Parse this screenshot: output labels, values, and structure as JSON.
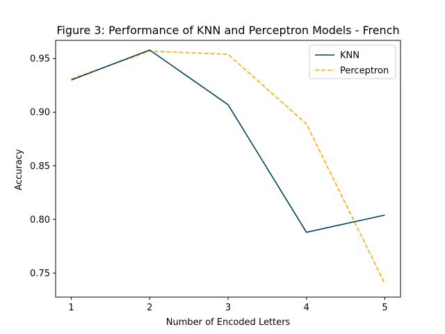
{
  "chart_data": {
    "type": "line",
    "title": "Figure 3: Performance of KNN and Perceptron Models - French",
    "xlabel": "Number of Encoded Letters",
    "ylabel": "Accuracy",
    "x": [
      1,
      2,
      3,
      4,
      5
    ],
    "x_ticks": [
      "1",
      "2",
      "3",
      "4",
      "5"
    ],
    "y_ticks": [
      "0.75",
      "0.80",
      "0.85",
      "0.90",
      "0.95"
    ],
    "xlim": [
      0.8,
      5.2
    ],
    "ylim": [
      0.7275,
      0.967
    ],
    "grid": false,
    "legend_position": "top-right",
    "series": [
      {
        "name": "KNN",
        "values": [
          0.93,
          0.958,
          0.907,
          0.788,
          0.804
        ],
        "color": "#003f5c",
        "line_style": "solid"
      },
      {
        "name": "Perceptron",
        "values": [
          0.931,
          0.957,
          0.954,
          0.889,
          0.74
        ],
        "color": "#ffa600",
        "line_style": "dashed"
      }
    ]
  }
}
